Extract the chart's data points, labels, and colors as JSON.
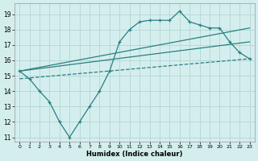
{
  "xlabel": "Humidex (Indice chaleur)",
  "background_color": "#d4eeee",
  "grid_color": "#b8d8d8",
  "line_color": "#2a7f7f",
  "xlim": [
    -0.5,
    23.5
  ],
  "ylim": [
    10.7,
    19.7
  ],
  "yticks": [
    11,
    12,
    13,
    14,
    15,
    16,
    17,
    18,
    19
  ],
  "xticks": [
    0,
    1,
    2,
    3,
    4,
    5,
    6,
    7,
    8,
    9,
    10,
    11,
    12,
    13,
    14,
    15,
    16,
    17,
    18,
    19,
    20,
    21,
    22,
    23
  ],
  "line1_x": [
    0,
    1,
    2,
    3,
    4,
    5,
    6,
    7,
    8,
    9,
    10,
    11,
    12,
    13,
    14,
    15,
    16,
    17,
    18,
    19,
    20,
    21,
    22,
    23
  ],
  "line1_y": [
    15.3,
    14.8,
    14.0,
    13.3,
    12.0,
    11.0,
    12.0,
    13.0,
    14.0,
    15.3,
    17.2,
    18.0,
    18.5,
    18.6,
    18.6,
    18.6,
    19.2,
    18.5,
    18.3,
    18.1,
    18.1,
    17.2,
    16.5,
    16.1
  ],
  "line2_x": [
    0,
    23
  ],
  "line2_y": [
    15.3,
    18.1
  ],
  "line3_x": [
    0,
    23
  ],
  "line3_y": [
    15.3,
    17.2
  ],
  "line4_x": [
    0,
    23
  ],
  "line4_y": [
    14.8,
    16.1
  ]
}
